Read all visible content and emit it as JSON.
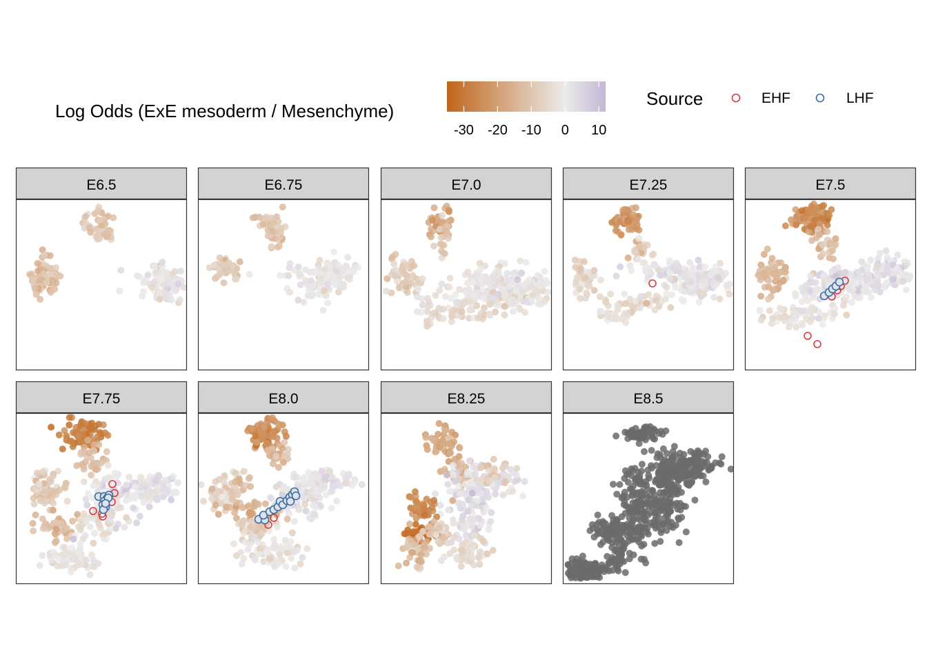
{
  "legend": {
    "color_title": "Log Odds (ExE mesoderm / Mesenchyme)",
    "color_ticks": [
      "-30",
      "-20",
      "-10",
      "0",
      "10"
    ],
    "color_tick_values": [
      -30,
      -20,
      -10,
      0,
      10
    ],
    "color_range": [
      -35,
      12
    ],
    "colors": {
      "low": "#C0661A",
      "mid": "#EBEBEB",
      "high": "#C3B6D4"
    },
    "shape_title": "Source",
    "shape_items": [
      {
        "label": "EHF",
        "color": "#D63A43"
      },
      {
        "label": "LHF",
        "color": "#3C6AA0"
      }
    ]
  },
  "strip_color": "#D3D3D3",
  "na_color": "#6B6B6B",
  "chart_data": {
    "type": "scatter",
    "facets": [
      {
        "label": "E6.5",
        "ehf": 0,
        "lhf": 0
      },
      {
        "label": "E6.75",
        "ehf": 0,
        "lhf": 0
      },
      {
        "label": "E7.0",
        "ehf": 0,
        "lhf": 0
      },
      {
        "label": "E7.25",
        "ehf": 1,
        "lhf": 0
      },
      {
        "label": "E7.5",
        "ehf": 6,
        "lhf": 5
      },
      {
        "label": "E7.75",
        "ehf": 5,
        "lhf": 10
      },
      {
        "label": "E8.0",
        "ehf": 3,
        "lhf": 14
      },
      {
        "label": "E8.25",
        "ehf": 0,
        "lhf": 0
      },
      {
        "label": "E8.5",
        "ehf": 0,
        "lhf": 0
      }
    ]
  }
}
